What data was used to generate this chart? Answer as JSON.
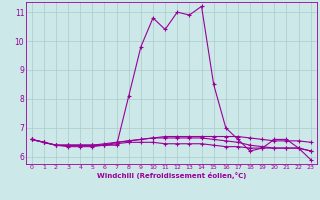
{
  "title": "",
  "xlabel": "Windchill (Refroidissement éolien,°C)",
  "ylabel": "",
  "background_color": "#cce8e8",
  "line_color": "#990099",
  "grid_color": "#aacccc",
  "xlim": [
    -0.5,
    23.5
  ],
  "ylim": [
    5.75,
    11.35
  ],
  "yticks": [
    6,
    7,
    8,
    9,
    10,
    11
  ],
  "xticks": [
    0,
    1,
    2,
    3,
    4,
    5,
    6,
    7,
    8,
    9,
    10,
    11,
    12,
    13,
    14,
    15,
    16,
    17,
    18,
    19,
    20,
    21,
    22,
    23
  ],
  "series": [
    {
      "x": [
        0,
        1,
        2,
        3,
        4,
        5,
        6,
        7,
        8,
        9,
        10,
        11,
        12,
        13,
        14,
        15,
        16,
        17,
        18,
        19,
        20,
        21,
        22,
        23
      ],
      "y": [
        6.6,
        6.5,
        6.4,
        6.4,
        6.4,
        6.4,
        6.4,
        6.4,
        8.1,
        9.8,
        10.8,
        10.4,
        11.0,
        10.9,
        11.2,
        8.5,
        7.0,
        6.6,
        6.2,
        6.3,
        6.6,
        6.6,
        6.3,
        5.9
      ]
    },
    {
      "x": [
        0,
        1,
        2,
        3,
        4,
        5,
        6,
        7,
        8,
        9,
        10,
        11,
        12,
        13,
        14,
        15,
        16,
        17,
        18,
        19,
        20,
        21,
        22,
        23
      ],
      "y": [
        6.6,
        6.5,
        6.4,
        6.4,
        6.4,
        6.4,
        6.4,
        6.5,
        6.55,
        6.6,
        6.65,
        6.65,
        6.65,
        6.65,
        6.65,
        6.6,
        6.55,
        6.5,
        6.4,
        6.35,
        6.3,
        6.3,
        6.3,
        6.2
      ]
    },
    {
      "x": [
        0,
        1,
        2,
        3,
        4,
        5,
        6,
        7,
        8,
        9,
        10,
        11,
        12,
        13,
        14,
        15,
        16,
        17,
        18,
        19,
        20,
        21,
        22,
        23
      ],
      "y": [
        6.6,
        6.5,
        6.4,
        6.35,
        6.35,
        6.35,
        6.4,
        6.45,
        6.5,
        6.5,
        6.5,
        6.45,
        6.45,
        6.45,
        6.45,
        6.4,
        6.35,
        6.35,
        6.3,
        6.3,
        6.3,
        6.3,
        6.3,
        6.2
      ]
    },
    {
      "x": [
        0,
        1,
        2,
        3,
        4,
        5,
        6,
        7,
        8,
        9,
        10,
        11,
        12,
        13,
        14,
        15,
        16,
        17,
        18,
        19,
        20,
        21,
        22,
        23
      ],
      "y": [
        6.6,
        6.5,
        6.4,
        6.4,
        6.4,
        6.4,
        6.45,
        6.5,
        6.55,
        6.6,
        6.65,
        6.7,
        6.7,
        6.7,
        6.7,
        6.7,
        6.7,
        6.7,
        6.65,
        6.6,
        6.55,
        6.55,
        6.55,
        6.5
      ]
    }
  ]
}
